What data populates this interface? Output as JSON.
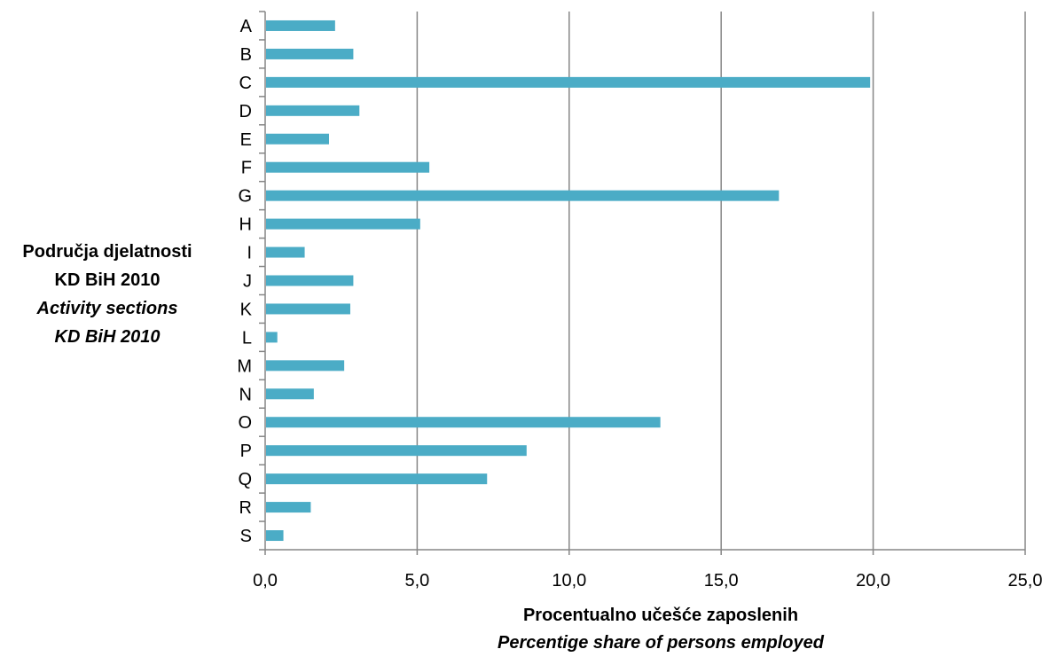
{
  "chart_data": {
    "type": "bar",
    "orientation": "horizontal",
    "categories": [
      "A",
      "B",
      "C",
      "D",
      "E",
      "F",
      "G",
      "H",
      "I",
      "J",
      "K",
      "L",
      "M",
      "N",
      "O",
      "P",
      "Q",
      "R",
      "S"
    ],
    "values": [
      2.3,
      2.9,
      19.9,
      3.1,
      2.1,
      5.4,
      16.9,
      5.1,
      1.3,
      2.9,
      2.8,
      0.4,
      2.6,
      1.6,
      13.0,
      8.6,
      7.3,
      1.5,
      0.6
    ],
    "xlim": [
      0,
      25
    ],
    "x_ticks": [
      "0,0",
      "5,0",
      "10,0",
      "15,0",
      "20,0",
      "25,0"
    ],
    "ylabel_line1": "Područja djelatnosti",
    "ylabel_line2": "KD BiH 2010",
    "ylabel_line3": "Activity sections",
    "ylabel_line4": "KD BiH 2010",
    "xlabel_line1": "Procentualno učešće zaposlenih",
    "xlabel_line2": "Percentige share of persons employed",
    "grid": "vertical",
    "legend": "none",
    "bar_color": "#4BACC6",
    "grid_color": "#868686",
    "axis_color": "#868686"
  }
}
